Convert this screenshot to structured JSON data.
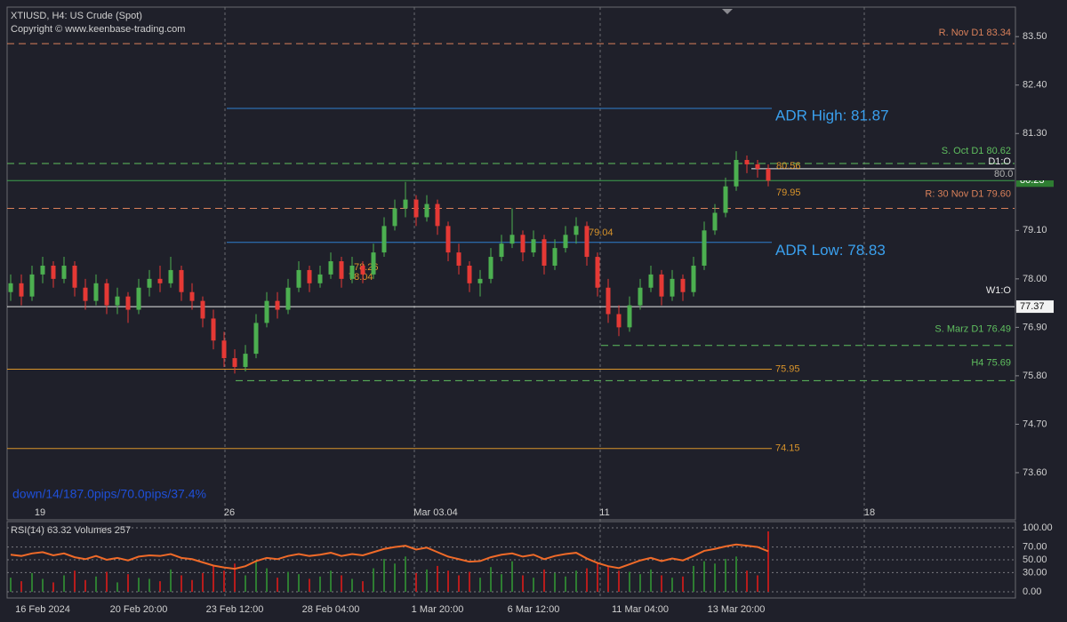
{
  "chart_data": {
    "type": "candlestick",
    "title": "XTIUSD, H4:  US Crude (Spot)",
    "subtitle": "Copyright © www.keenbase-trading.com",
    "annotation": "down/14/187.0pips/70.0pips/37.4%",
    "period_markers": [
      "19",
      "26",
      "Mar 03.04",
      "11",
      "18"
    ],
    "categories": [
      null,
      null,
      null,
      "16 Feb 2024",
      null,
      null,
      null,
      null,
      null,
      null,
      null,
      null,
      "20 Feb 20:00",
      null,
      null,
      null,
      null,
      null,
      null,
      null,
      null,
      "23 Feb 12:00",
      null,
      null,
      null,
      null,
      null,
      null,
      null,
      null,
      "28 Feb 04:00",
      null,
      null,
      null,
      null,
      null,
      null,
      null,
      null,
      null,
      "1 Mar 20:00",
      null,
      null,
      null,
      null,
      null,
      null,
      null,
      null,
      "6 Mar 12:00",
      null,
      null,
      null,
      null,
      null,
      null,
      null,
      null,
      null,
      "11 Mar 04:00",
      null,
      null,
      null,
      null,
      null,
      null,
      null,
      null,
      "13 Mar 20:00",
      null,
      null,
      null
    ],
    "up_color": "#4caf50",
    "down_color": "#e53935",
    "ohlc": [
      [
        77.7,
        78.1,
        77.5,
        77.9
      ],
      [
        77.9,
        78.1,
        77.4,
        77.6
      ],
      [
        77.6,
        78.3,
        77.5,
        78.1
      ],
      [
        78.1,
        78.5,
        77.9,
        78.3
      ],
      [
        78.3,
        78.4,
        77.8,
        78.0
      ],
      [
        78.0,
        78.5,
        77.9,
        78.3
      ],
      [
        78.3,
        78.4,
        77.6,
        77.8
      ],
      [
        77.8,
        78.0,
        77.3,
        77.5
      ],
      [
        77.5,
        78.1,
        77.4,
        77.9
      ],
      [
        77.9,
        78.0,
        77.2,
        77.4
      ],
      [
        77.4,
        77.8,
        77.2,
        77.6
      ],
      [
        77.6,
        77.7,
        77.0,
        77.3
      ],
      [
        77.3,
        78.0,
        77.2,
        77.8
      ],
      [
        77.8,
        78.2,
        77.6,
        78.0
      ],
      [
        78.0,
        78.3,
        77.7,
        77.9
      ],
      [
        77.9,
        78.5,
        77.8,
        78.2
      ],
      [
        78.2,
        78.3,
        77.5,
        77.7
      ],
      [
        77.7,
        77.9,
        77.3,
        77.5
      ],
      [
        77.5,
        77.6,
        76.9,
        77.1
      ],
      [
        77.1,
        77.3,
        76.4,
        76.6
      ],
      [
        76.6,
        76.8,
        76.0,
        76.2
      ],
      [
        76.2,
        76.4,
        75.85,
        76.0
      ],
      [
        76.0,
        76.5,
        75.9,
        76.3
      ],
      [
        76.3,
        77.2,
        76.2,
        77.0
      ],
      [
        77.0,
        77.7,
        76.9,
        77.5
      ],
      [
        77.5,
        77.7,
        77.1,
        77.3
      ],
      [
        77.3,
        78.0,
        77.2,
        77.8
      ],
      [
        77.8,
        78.4,
        77.7,
        78.2
      ],
      [
        78.2,
        78.3,
        77.7,
        77.9
      ],
      [
        77.9,
        78.3,
        77.8,
        78.1
      ],
      [
        78.1,
        78.6,
        78.0,
        78.4
      ],
      [
        78.4,
        78.5,
        77.8,
        78.0
      ],
      [
        78.0,
        78.5,
        77.9,
        78.3
      ],
      [
        78.3,
        78.4,
        77.9,
        78.1
      ],
      [
        78.1,
        78.8,
        78.0,
        78.6
      ],
      [
        78.6,
        79.4,
        78.5,
        79.2
      ],
      [
        79.2,
        79.8,
        79.1,
        79.6
      ],
      [
        79.6,
        80.2,
        79.4,
        79.8
      ],
      [
        79.8,
        79.9,
        79.2,
        79.4
      ],
      [
        79.4,
        79.9,
        79.3,
        79.7
      ],
      [
        79.7,
        79.8,
        79.0,
        79.2
      ],
      [
        79.2,
        79.3,
        78.4,
        78.6
      ],
      [
        78.6,
        78.8,
        78.1,
        78.3
      ],
      [
        78.3,
        78.4,
        77.7,
        77.9
      ],
      [
        77.9,
        78.2,
        77.6,
        78.0
      ],
      [
        78.0,
        78.7,
        77.9,
        78.5
      ],
      [
        78.5,
        79.0,
        78.4,
        78.8
      ],
      [
        78.8,
        79.6,
        78.7,
        79.0
      ],
      [
        79.0,
        79.1,
        78.4,
        78.6
      ],
      [
        78.6,
        79.1,
        78.5,
        78.9
      ],
      [
        78.9,
        79.0,
        78.1,
        78.3
      ],
      [
        78.3,
        78.9,
        78.2,
        78.7
      ],
      [
        78.7,
        79.2,
        78.6,
        79.0
      ],
      [
        79.0,
        79.4,
        78.8,
        79.2
      ],
      [
        79.2,
        79.3,
        78.3,
        78.5
      ],
      [
        78.5,
        78.6,
        77.6,
        77.8
      ],
      [
        77.8,
        78.0,
        77.0,
        77.2
      ],
      [
        77.2,
        77.4,
        76.7,
        76.9
      ],
      [
        76.9,
        77.6,
        76.8,
        77.4
      ],
      [
        77.4,
        78.0,
        77.3,
        77.8
      ],
      [
        77.8,
        78.3,
        77.7,
        78.1
      ],
      [
        78.1,
        78.2,
        77.4,
        77.6
      ],
      [
        77.6,
        78.2,
        77.5,
        78.0
      ],
      [
        78.0,
        78.1,
        77.5,
        77.7
      ],
      [
        77.7,
        78.5,
        77.6,
        78.3
      ],
      [
        78.3,
        79.3,
        78.2,
        79.1
      ],
      [
        79.1,
        79.7,
        79.0,
        79.5
      ],
      [
        79.5,
        80.3,
        79.4,
        80.1
      ],
      [
        80.1,
        80.9,
        80.0,
        80.7
      ],
      [
        80.7,
        80.8,
        80.4,
        80.6
      ],
      [
        80.6,
        80.7,
        80.3,
        80.5
      ],
      [
        80.5,
        80.6,
        80.1,
        80.23
      ]
    ],
    "ylim": [
      72.55,
      84.17
    ],
    "yticks": [
      {
        "value": 83.5,
        "label": "83.50"
      },
      {
        "value": 82.4,
        "label": "82.40"
      },
      {
        "value": 81.3,
        "label": "81.30"
      },
      {
        "value": 79.1,
        "label": "79.10"
      },
      {
        "value": 78,
        "label": "78.00"
      },
      {
        "value": 76.9,
        "label": "76.90"
      },
      {
        "value": 75.8,
        "label": "75.80"
      },
      {
        "value": 74.7,
        "label": "74.70"
      },
      {
        "value": 73.6,
        "label": "73.60"
      }
    ],
    "levels": [
      {
        "label": "R. Nov D1 83.34",
        "value": 83.34,
        "color": "#d9805a",
        "dash": true
      },
      {
        "label": "ADR High: 81.87",
        "value": 81.87,
        "color": "#2f7fd0",
        "dash": false
      },
      {
        "label": "S. Oct D1 80.62",
        "value": 80.62,
        "color": "#5fbf5f",
        "dash": true
      },
      {
        "label": "D1:O",
        "value": 80.5,
        "color": "#e8e8e8",
        "dash": false
      },
      {
        "value": 80.23,
        "color": "#3fa34d",
        "dash": false
      },
      {
        "label": "R: 30 Nov D1 79.60",
        "value": 79.6,
        "color": "#d9805a",
        "dash": true
      },
      {
        "label": "ADR Low: 78.83",
        "value": 78.83,
        "color": "#2f7fd0",
        "dash": false
      },
      {
        "label": "W1:O",
        "value": 77.37,
        "color": "#e8e8e8",
        "dash": false
      },
      {
        "label": "S. Marz D1 76.49",
        "value": 76.49,
        "color": "#5fbf5f",
        "dash": true
      },
      {
        "label": "H4 75.69",
        "value": 75.69,
        "color": "#5fbf5f",
        "dash": true
      },
      {
        "value": 75.95,
        "color": "#d9942a",
        "dash": false
      },
      {
        "value": 74.15,
        "color": "#d9942a",
        "dash": false
      }
    ],
    "price_tags": [
      80.56,
      79.95,
      79.04,
      78.26,
      78.04
    ],
    "price_boxes": [
      {
        "value": 80.23,
        "color": "#2e7d32"
      },
      {
        "value": 77.37,
        "color": "#f2f2f2"
      },
      {
        "value": 80,
        "label": "80.0",
        "color": "#1f202a"
      }
    ],
    "rsi": {
      "title": "RSI(14) 63.32 Volumes 257",
      "color": "#f06a28",
      "values": [
        58,
        56,
        60,
        62,
        57,
        60,
        54,
        51,
        56,
        50,
        53,
        49,
        55,
        57,
        56,
        59,
        53,
        51,
        46,
        41,
        38,
        36,
        40,
        48,
        53,
        51,
        56,
        59,
        56,
        58,
        61,
        56,
        59,
        57,
        62,
        67,
        70,
        72,
        66,
        69,
        62,
        55,
        51,
        47,
        48,
        54,
        58,
        60,
        55,
        58,
        51,
        56,
        59,
        61,
        52,
        45,
        40,
        37,
        43,
        49,
        53,
        48,
        52,
        49,
        56,
        64,
        67,
        71,
        74,
        72,
        70,
        63.32
      ],
      "volumes": [
        60,
        45,
        80,
        55,
        40,
        70,
        90,
        50,
        65,
        85,
        40,
        75,
        60,
        55,
        45,
        95,
        70,
        50,
        80,
        110,
        90,
        120,
        70,
        130,
        100,
        60,
        85,
        75,
        55,
        65,
        90,
        70,
        55,
        45,
        100,
        140,
        120,
        150,
        80,
        95,
        110,
        90,
        70,
        85,
        60,
        105,
        75,
        130,
        70,
        60,
        95,
        80,
        65,
        90,
        100,
        120,
        110,
        90,
        85,
        75,
        95,
        70,
        60,
        65,
        110,
        130,
        120,
        140,
        150,
        90,
        70,
        257
      ],
      "ylim": [
        -8.33,
        108.33
      ],
      "yticks": [
        {
          "value": 100,
          "label": "100.00"
        },
        {
          "value": 70,
          "label": "70.00"
        },
        {
          "value": 50,
          "label": "50.00"
        },
        {
          "value": 30,
          "label": "30.00"
        },
        {
          "value": 0,
          "label": "0.00"
        }
      ]
    }
  }
}
